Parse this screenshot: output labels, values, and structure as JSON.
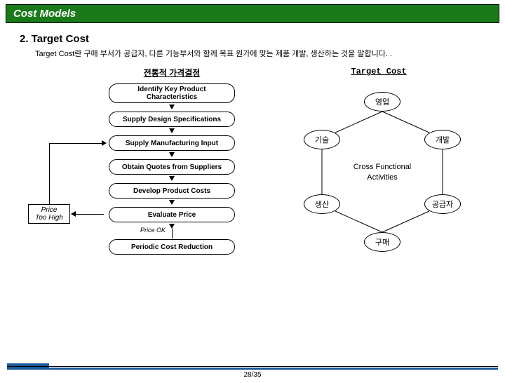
{
  "header": {
    "title": "Cost Models"
  },
  "section": {
    "title": "2. Target Cost"
  },
  "description": "Target Cost란 구매 부서가 공급자, 다른 기능부서와 함께 목표 원가에 맞는 제품 개발, 생산하는 것을 말합니다. .",
  "left": {
    "title": "전통적 가격결정",
    "steps": [
      "Identify Key Product\nCharacteristics",
      "Supply Design Specifications",
      "Supply Manufacturing Input",
      "Obtain Quotes from Suppliers",
      "Develop Product Costs",
      "Evaluate Price",
      "Periodic Cost Reduction"
    ],
    "price_ok": "Price OK",
    "feedback": "Price\nToo High"
  },
  "right": {
    "title": "Target Cost",
    "nodes": [
      "영업",
      "개발",
      "공급자",
      "구매",
      "생산",
      "기술"
    ],
    "center": "Cross Functional\nActivities"
  },
  "page": "28/35",
  "colors": {
    "header_bg": "#1a7a1a",
    "footer_accent": "#1a5a9a",
    "border": "#000000",
    "bg": "#ffffff"
  }
}
